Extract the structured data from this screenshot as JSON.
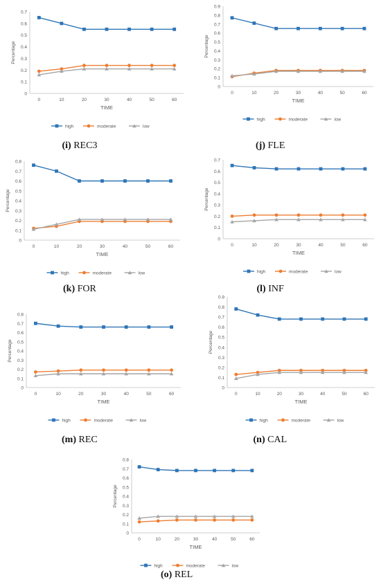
{
  "legend_labels": [
    "high",
    "moderate",
    "low"
  ],
  "colors": {
    "high": "#2e75b6",
    "moderate": "#ed7d31",
    "low": "#a5a5a5",
    "axis": "#bfbfbf",
    "text": "#595959"
  },
  "chart_data": [
    {
      "type": "line",
      "caption_letter": "(i)",
      "caption_name": "REC3",
      "xlabel": "TIME",
      "ylabel": "Percentage",
      "x": [
        0,
        10,
        20,
        30,
        40,
        50,
        60
      ],
      "ylim": [
        0,
        0.7
      ],
      "yticks": [
        "0",
        "0.1",
        "0.2",
        "0.3",
        "0.4",
        "0.5",
        "0.6",
        "0.7"
      ],
      "grid": false,
      "legend": "bottom",
      "series": [
        {
          "name": "high",
          "values": [
            0.65,
            0.6,
            0.55,
            0.55,
            0.55,
            0.55,
            0.55
          ]
        },
        {
          "name": "moderate",
          "values": [
            0.19,
            0.21,
            0.24,
            0.24,
            0.24,
            0.24,
            0.24
          ]
        },
        {
          "name": "low",
          "values": [
            0.16,
            0.19,
            0.21,
            0.21,
            0.21,
            0.21,
            0.21
          ]
        }
      ]
    },
    {
      "type": "line",
      "caption_letter": "(j)",
      "caption_name": "FLE",
      "xlabel": "TIME",
      "ylabel": "Percentage",
      "x": [
        0,
        10,
        20,
        30,
        40,
        50,
        60
      ],
      "ylim": [
        0,
        0.9
      ],
      "yticks": [
        "0",
        "0.1",
        "0.2",
        "0.3",
        "0.4",
        "0.5",
        "0.6",
        "0.7",
        "0.8",
        "0.9"
      ],
      "grid": false,
      "legend": "bottom",
      "series": [
        {
          "name": "high",
          "values": [
            0.77,
            0.71,
            0.65,
            0.65,
            0.65,
            0.65,
            0.65
          ]
        },
        {
          "name": "moderate",
          "values": [
            0.11,
            0.15,
            0.18,
            0.18,
            0.18,
            0.18,
            0.18
          ]
        },
        {
          "name": "low",
          "values": [
            0.12,
            0.14,
            0.17,
            0.17,
            0.17,
            0.17,
            0.17
          ]
        }
      ]
    },
    {
      "type": "line",
      "caption_letter": "(k)",
      "caption_name": "FOR",
      "xlabel": "TIME",
      "ylabel": "Percentage",
      "x": [
        0,
        10,
        20,
        30,
        40,
        50,
        60
      ],
      "ylim": [
        0,
        0.8
      ],
      "yticks": [
        "0",
        "0.1",
        "0.2",
        "0.3",
        "0.4",
        "0.5",
        "0.6",
        "0.7",
        "0.8"
      ],
      "grid": false,
      "legend": "bottom",
      "series": [
        {
          "name": "high",
          "values": [
            0.76,
            0.7,
            0.6,
            0.6,
            0.6,
            0.6,
            0.6
          ]
        },
        {
          "name": "moderate",
          "values": [
            0.12,
            0.14,
            0.19,
            0.19,
            0.19,
            0.19,
            0.19
          ]
        },
        {
          "name": "low",
          "values": [
            0.11,
            0.16,
            0.21,
            0.21,
            0.21,
            0.21,
            0.21
          ]
        }
      ]
    },
    {
      "type": "line",
      "caption_letter": "(l)",
      "caption_name": "INF",
      "xlabel": "TIME",
      "ylabel": "Percentage",
      "x": [
        0,
        10,
        20,
        30,
        40,
        50,
        60
      ],
      "ylim": [
        0,
        0.7
      ],
      "yticks": [
        "0",
        "0.1",
        "0.2",
        "0.3",
        "0.4",
        "0.5",
        "0.6",
        "0.7"
      ],
      "grid": false,
      "legend": "bottom",
      "series": [
        {
          "name": "high",
          "values": [
            0.65,
            0.63,
            0.62,
            0.62,
            0.62,
            0.62,
            0.62
          ]
        },
        {
          "name": "moderate",
          "values": [
            0.2,
            0.21,
            0.21,
            0.21,
            0.21,
            0.21,
            0.21
          ]
        },
        {
          "name": "low",
          "values": [
            0.15,
            0.16,
            0.17,
            0.17,
            0.17,
            0.17,
            0.17
          ]
        }
      ]
    },
    {
      "type": "line",
      "caption_letter": "(m)",
      "caption_name": "REC",
      "xlabel": "TIME",
      "ylabel": "Percentage",
      "x": [
        0,
        10,
        20,
        30,
        40,
        50,
        60
      ],
      "ylim": [
        0,
        0.8
      ],
      "yticks": [
        "0",
        "0.1",
        "0.2",
        "0.3",
        "0.4",
        "0.5",
        "0.6",
        "0.7",
        "0.8"
      ],
      "grid": false,
      "legend": "bottom",
      "series": [
        {
          "name": "high",
          "values": [
            0.7,
            0.67,
            0.66,
            0.66,
            0.66,
            0.66,
            0.66
          ]
        },
        {
          "name": "moderate",
          "values": [
            0.17,
            0.18,
            0.19,
            0.19,
            0.19,
            0.19,
            0.19
          ]
        },
        {
          "name": "low",
          "values": [
            0.13,
            0.15,
            0.15,
            0.15,
            0.15,
            0.15,
            0.15
          ]
        }
      ]
    },
    {
      "type": "line",
      "caption_letter": "(n)",
      "caption_name": "CAL",
      "xlabel": "TIME",
      "ylabel": "Percentage",
      "x": [
        0,
        10,
        20,
        30,
        40,
        50,
        60
      ],
      "ylim": [
        0,
        0.9
      ],
      "yticks": [
        "0",
        "0.1",
        "0.2",
        "0.3",
        "0.4",
        "0.5",
        "0.6",
        "0.7",
        "0.8",
        "0.9"
      ],
      "grid": false,
      "legend": "bottom",
      "series": [
        {
          "name": "high",
          "values": [
            0.78,
            0.72,
            0.68,
            0.68,
            0.68,
            0.68,
            0.68
          ]
        },
        {
          "name": "moderate",
          "values": [
            0.13,
            0.15,
            0.17,
            0.17,
            0.17,
            0.17,
            0.17
          ]
        },
        {
          "name": "low",
          "values": [
            0.09,
            0.13,
            0.15,
            0.15,
            0.15,
            0.15,
            0.15
          ]
        }
      ]
    },
    {
      "type": "line",
      "caption_letter": "(o)",
      "caption_name": "REL",
      "xlabel": "TIME",
      "ylabel": "Percentage",
      "x": [
        0,
        10,
        20,
        30,
        40,
        50,
        60
      ],
      "ylim": [
        0,
        0.8
      ],
      "yticks": [
        "0",
        "0.1",
        "0.2",
        "0.3",
        "0.4",
        "0.5",
        "0.6",
        "0.7",
        "0.8"
      ],
      "grid": false,
      "legend": "bottom",
      "series": [
        {
          "name": "high",
          "values": [
            0.72,
            0.69,
            0.68,
            0.68,
            0.68,
            0.68,
            0.68
          ]
        },
        {
          "name": "moderate",
          "values": [
            0.12,
            0.13,
            0.14,
            0.14,
            0.14,
            0.14,
            0.14
          ]
        },
        {
          "name": "low",
          "values": [
            0.16,
            0.18,
            0.18,
            0.18,
            0.18,
            0.18,
            0.18
          ]
        }
      ]
    }
  ]
}
